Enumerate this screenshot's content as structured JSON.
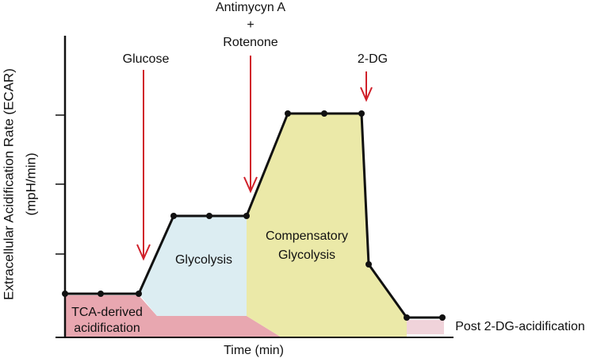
{
  "y_axis": {
    "label": "Extracellular Acidification Rate (ECAR)",
    "unit": "(mpH/min)"
  },
  "x_axis": {
    "label": "Time (min)"
  },
  "injections": [
    {
      "label": "Glucose"
    },
    {
      "label_lines": [
        "Antimycyn A",
        "+",
        "Rotenone"
      ]
    },
    {
      "label": "2-DG"
    }
  ],
  "regions": [
    {
      "label_lines": [
        "TCA-derived",
        "acidification"
      ]
    },
    {
      "label": "Glycolysis"
    },
    {
      "label_lines": [
        "Compensatory",
        "Glycolysis"
      ]
    },
    {
      "label": "Post 2-DG-acidification"
    }
  ]
}
